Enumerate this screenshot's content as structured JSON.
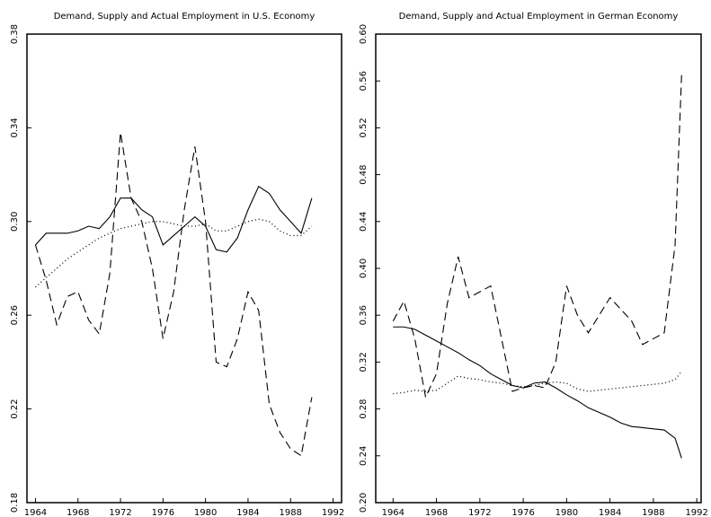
{
  "chart_data": [
    {
      "type": "line",
      "title": "Demand, Supply and Actual Employment in U.S. Economy",
      "x": [
        1964,
        1965,
        1966,
        1967,
        1968,
        1969,
        1970,
        1971,
        1972,
        1973,
        1974,
        1975,
        1976,
        1977,
        1978,
        1979,
        1980,
        1981,
        1982,
        1983,
        1984,
        1985,
        1986,
        1987,
        1988,
        1989,
        1990
      ],
      "series": [
        {
          "color": "#000000",
          "dash": "solid",
          "values": [
            0.29,
            0.295,
            0.295,
            0.295,
            0.296,
            0.298,
            0.297,
            0.302,
            0.31,
            0.31,
            0.305,
            0.302,
            0.29,
            0.294,
            0.298,
            0.302,
            0.298,
            0.288,
            0.287,
            0.293,
            0.305,
            0.315,
            0.312,
            0.305,
            0.3,
            0.295,
            0.31
          ]
        },
        {
          "color": "#000000",
          "dash": "dotted",
          "values": [
            0.272,
            0.276,
            0.28,
            0.284,
            0.287,
            0.29,
            0.293,
            0.295,
            0.297,
            0.298,
            0.299,
            0.3,
            0.3,
            0.299,
            0.298,
            0.298,
            0.299,
            0.296,
            0.296,
            0.298,
            0.3,
            0.301,
            0.3,
            0.296,
            0.294,
            0.294,
            0.298
          ]
        },
        {
          "color": "#000000",
          "dash": "dashed",
          "values": [
            0.29,
            0.275,
            0.256,
            0.268,
            0.27,
            0.258,
            0.252,
            0.278,
            0.338,
            0.31,
            0.3,
            0.28,
            0.25,
            0.27,
            0.305,
            0.332,
            0.3,
            0.24,
            0.238,
            0.25,
            0.27,
            0.262,
            0.222,
            0.21,
            0.203,
            0.2,
            0.225
          ]
        }
      ],
      "xlim": [
        1963.2,
        1992.8
      ],
      "xticks": [
        1964,
        1968,
        1972,
        1976,
        1980,
        1984,
        1988,
        1992
      ],
      "ylim": [
        0.18,
        0.38
      ],
      "yticks": [
        0.18,
        0.22,
        0.26,
        {
          "value": 0.3,
          "label": "0.30"
        },
        0.34,
        0.38
      ],
      "grid": false
    },
    {
      "type": "line",
      "title": "Demand, Supply and Actual Employment in German Economy",
      "x": [
        1964,
        1965,
        1966,
        1967,
        1968,
        1969,
        1970,
        1971,
        1972,
        1973,
        1974,
        1975,
        1976,
        1977,
        1978,
        1979,
        1980,
        1981,
        1982,
        1983,
        1984,
        1985,
        1986,
        1987,
        1988,
        1989,
        1990,
        1990.6
      ],
      "series": [
        {
          "color": "#000000",
          "dash": "solid",
          "values": [
            0.35,
            0.35,
            0.348,
            0.343,
            0.338,
            0.333,
            0.328,
            0.322,
            0.317,
            0.31,
            0.305,
            0.3,
            0.298,
            0.302,
            0.303,
            0.298,
            0.292,
            0.287,
            0.281,
            0.277,
            0.273,
            0.268,
            0.265,
            0.264,
            0.263,
            0.262,
            0.255,
            0.238
          ]
        },
        {
          "color": "#000000",
          "dash": "dotted",
          "values": [
            0.293,
            0.294,
            0.296,
            0.295,
            0.296,
            0.302,
            0.308,
            0.306,
            0.305,
            0.303,
            0.302,
            0.3,
            0.299,
            0.3,
            0.302,
            0.303,
            0.302,
            0.297,
            0.295,
            0.296,
            0.297,
            0.298,
            0.299,
            0.3,
            0.301,
            0.302,
            0.305,
            0.312
          ]
        },
        {
          "color": "#000000",
          "dash": "dashed",
          "values": [
            0.355,
            0.372,
            0.34,
            0.29,
            0.31,
            0.37,
            0.41,
            0.375,
            0.38,
            0.385,
            0.34,
            0.295,
            0.298,
            0.3,
            0.298,
            0.32,
            0.385,
            0.36,
            0.345,
            0.36,
            0.375,
            0.365,
            0.355,
            0.335,
            0.34,
            0.345,
            0.42,
            0.565
          ]
        }
      ],
      "xlim": [
        1962.4,
        1992.4
      ],
      "xticks": [
        1964,
        1968,
        1972,
        1976,
        1980,
        1984,
        1988,
        1992
      ],
      "ylim": [
        0.2,
        0.6
      ],
      "yticks": [
        {
          "value": 0.2,
          "label": "0.20"
        },
        0.24,
        0.28,
        0.32,
        0.36,
        {
          "value": 0.4,
          "label": "0.40"
        },
        0.44,
        0.48,
        0.52,
        0.56,
        {
          "value": 0.6,
          "label": "0.60"
        }
      ],
      "grid": false
    }
  ]
}
